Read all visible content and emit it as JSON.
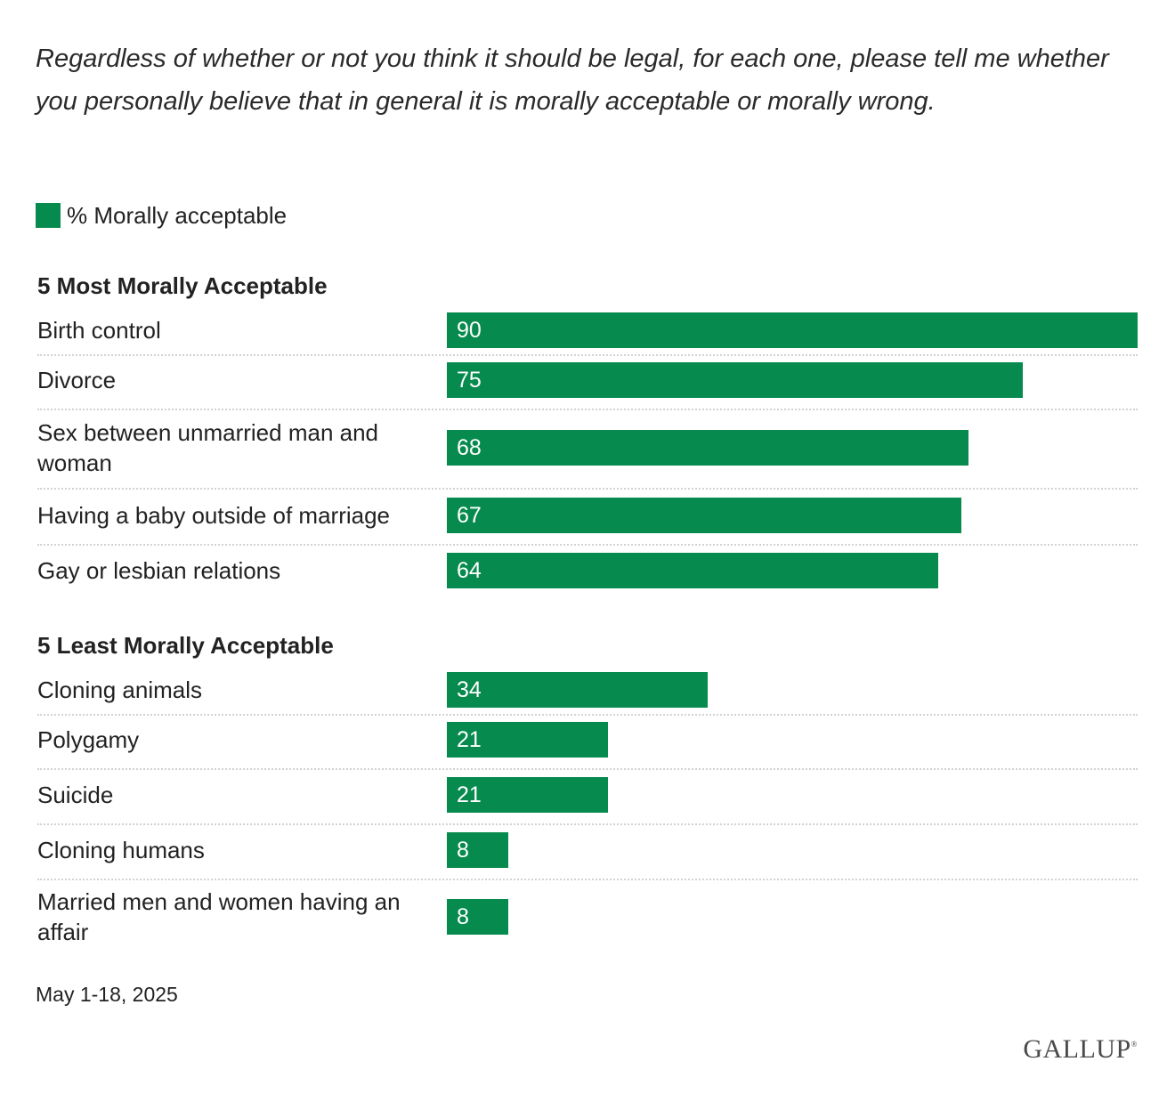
{
  "question": "Regardless of whether or not you think it should be legal, for each one, please tell me whether you personally believe that in general it is morally acceptable or morally wrong.",
  "legend": {
    "label": "% Morally acceptable",
    "color": "#078a4d"
  },
  "footnote": "May 1-18, 2025",
  "logo": "GALLUP",
  "colors": {
    "bar": "#078a4d",
    "separator": "#d2d2d2"
  },
  "chart_data": {
    "type": "bar",
    "orientation": "horizontal",
    "series": [
      {
        "name": "% Morally acceptable"
      }
    ],
    "xlim": [
      0,
      90
    ],
    "grid": false,
    "legend_position": "top-left",
    "groups": [
      {
        "title": "5 Most Morally Acceptable",
        "categories": [
          "Birth control",
          "Divorce",
          "Sex between unmarried man and woman",
          "Having a baby outside of marriage",
          "Gay or lesbian relations"
        ],
        "values": [
          90,
          75,
          68,
          67,
          64
        ]
      },
      {
        "title": "5 Least Morally Acceptable",
        "categories": [
          "Cloning animals",
          "Polygamy",
          "Suicide",
          "Cloning humans",
          "Married men and women having an affair"
        ],
        "values": [
          34,
          21,
          21,
          8,
          8
        ]
      }
    ]
  }
}
